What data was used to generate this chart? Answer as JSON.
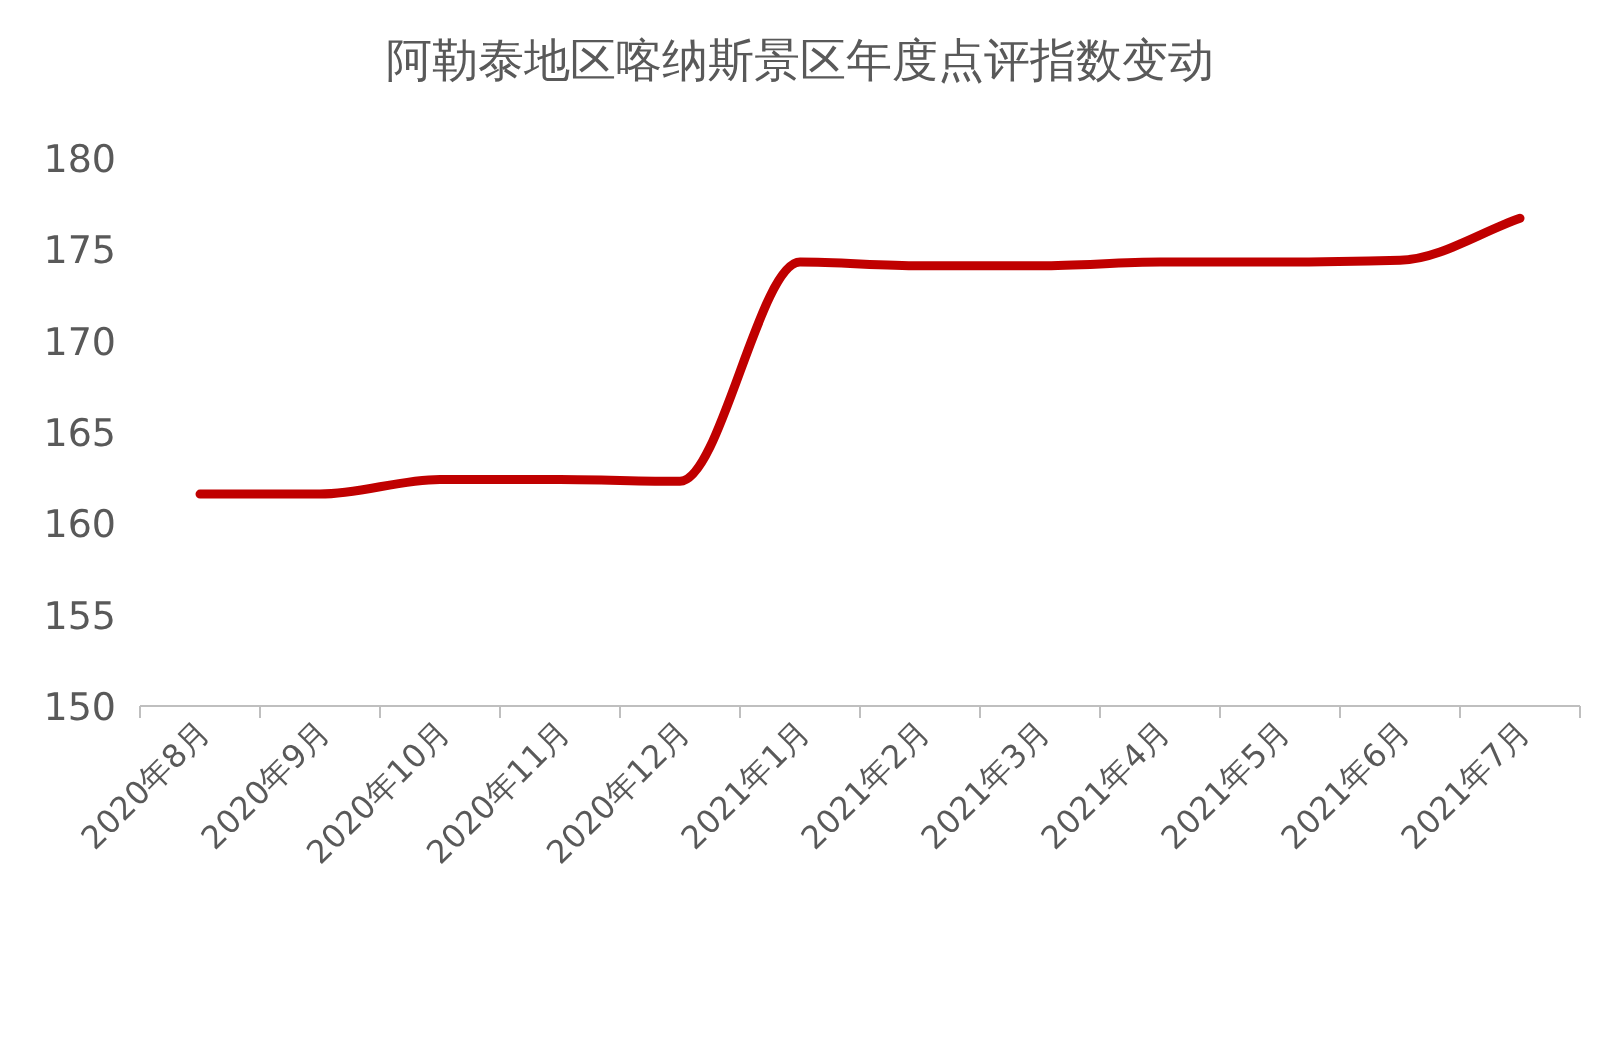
{
  "chart_data": {
    "type": "line",
    "title": "阿勒泰地区喀纳斯景区年度点评指数变动",
    "categories": [
      "2020年8月",
      "2020年9月",
      "2020年10月",
      "2020年11月",
      "2020年12月",
      "2021年1月",
      "2021年2月",
      "2021年3月",
      "2021年4月",
      "2021年5月",
      "2021年6月",
      "2021年7月"
    ],
    "series": [
      {
        "color": "#c00000",
        "values": [
          161.6,
          161.6,
          162.4,
          162.4,
          162.3,
          174.3,
          174.1,
          174.1,
          174.3,
          174.3,
          174.4,
          176.7
        ]
      }
    ],
    "ylim": [
      150,
      180
    ],
    "yticks": [
      150,
      155,
      160,
      165,
      170,
      175,
      180
    ],
    "grid": false,
    "marker": "none",
    "line_style": "solid"
  }
}
